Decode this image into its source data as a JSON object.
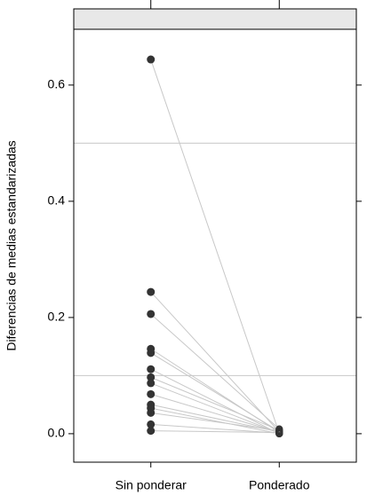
{
  "chart_data": {
    "type": "slope",
    "y_label": "Diferencias de medias estandarizadas",
    "categories": [
      "Sin ponderar",
      "Ponderado"
    ],
    "ylim": [
      -0.049,
      0.696
    ],
    "yticks": [
      {
        "value": 0,
        "label": "0.0"
      },
      0.2,
      0.4,
      0.6
    ],
    "reference_lines": [
      0.1,
      0.5
    ],
    "point_color": "#333333",
    "line_color": "#c8c8c8",
    "reference_color": "#c8c8c8",
    "strip_color": "#e8e8e8",
    "series": [
      {
        "values": [
          0.644,
          0.001
        ]
      },
      {
        "values": [
          0.244,
          0.003
        ]
      },
      {
        "values": [
          0.206,
          0.008
        ]
      },
      {
        "values": [
          0.146,
          0.002
        ]
      },
      {
        "values": [
          0.139,
          0.004
        ]
      },
      {
        "values": [
          0.111,
          0.0
        ]
      },
      {
        "values": [
          0.097,
          0.006
        ]
      },
      {
        "values": [
          0.087,
          0.001
        ]
      },
      {
        "values": [
          0.068,
          0.002
        ]
      },
      {
        "values": [
          0.05,
          0.003
        ]
      },
      {
        "values": [
          0.044,
          0.0
        ]
      },
      {
        "values": [
          0.036,
          0.005
        ]
      },
      {
        "values": [
          0.016,
          0.001
        ]
      },
      {
        "values": [
          0.005,
          0.002
        ]
      }
    ]
  }
}
